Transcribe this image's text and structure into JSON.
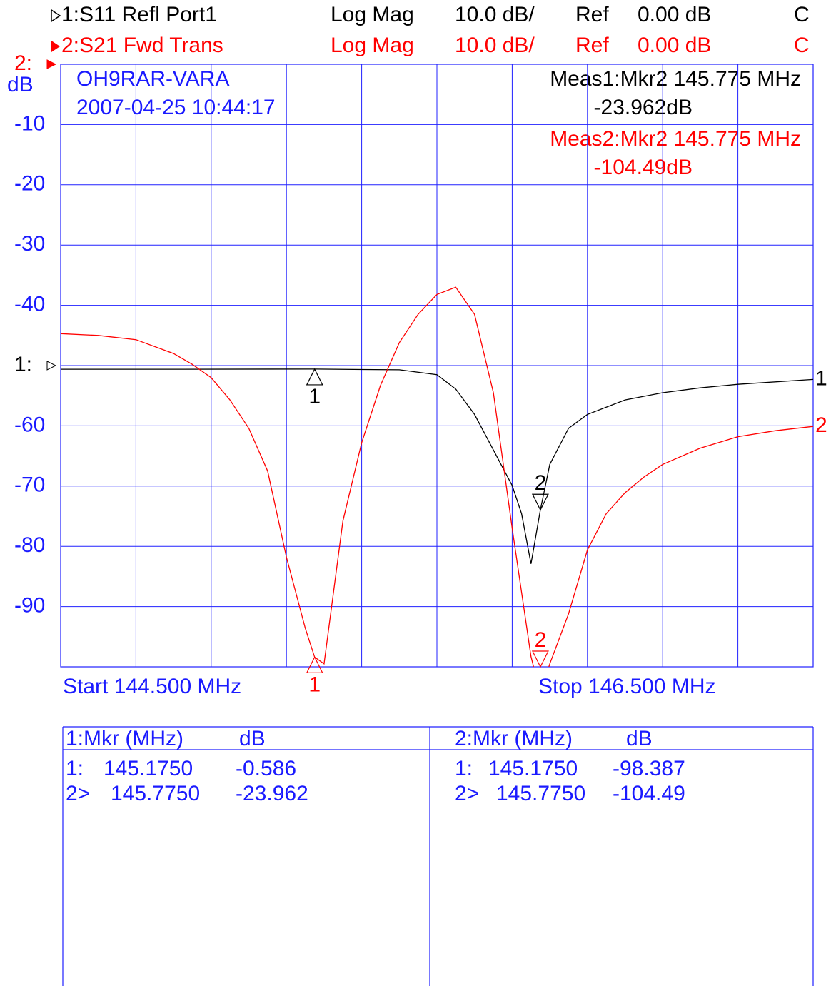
{
  "header": [
    {
      "trace": "1:S11 Refl Port1",
      "format": "Log Mag",
      "scale": "10.0 dB/",
      "ref_label": "Ref",
      "ref_value": "0.00 dB",
      "channel": "C",
      "color": "#000000"
    },
    {
      "trace": "2:S21 Fwd Trans",
      "format": "Log Mag",
      "scale": "10.0 dB/",
      "ref_label": "Ref",
      "ref_value": "0.00 dB",
      "channel": "C",
      "color": "#ff0000"
    }
  ],
  "chart_data": {
    "type": "line",
    "y_label": "dB",
    "annotations": [
      "OH9RAR-VARA",
      "2007-04-25 10:44:17"
    ],
    "measurements": [
      {
        "line1": "Meas1:Mkr2  145.775 MHz",
        "line2": "-23.962dB",
        "color": "#000000"
      },
      {
        "line1": "Meas2:Mkr2  145.775 MHz",
        "line2": "-104.49dB",
        "color": "#ff0000"
      }
    ],
    "start_label": "Start 144.500 MHz",
    "stop_label": "Stop 146.500 MHz",
    "xlim": [
      144.5,
      146.5
    ],
    "x_divisions": 10,
    "ylim": [
      -100,
      0
    ],
    "yticks": [
      -10,
      -20,
      -30,
      -40,
      -50,
      -60,
      -70,
      -80,
      -90
    ],
    "ytick_labels_hidden_at": [
      -50
    ],
    "y2lim": [
      -50,
      50
    ],
    "grid": true,
    "series": [
      {
        "label": "1",
        "ref_label": "1:",
        "axis": "y2",
        "color": "#000000",
        "x": [
          144.5,
          144.8,
          145.175,
          145.4,
          145.5,
          145.55,
          145.6,
          145.65,
          145.7,
          145.725,
          145.75,
          145.775,
          145.8,
          145.85,
          145.9,
          146.0,
          146.1,
          146.2,
          146.3,
          146.5
        ],
        "values": [
          -0.6,
          -0.6,
          -0.586,
          -0.7,
          -1.5,
          -3.9,
          -8.1,
          -14,
          -19.9,
          -24.6,
          -32.9,
          -23.962,
          -16.4,
          -10.4,
          -8.1,
          -5.7,
          -4.5,
          -3.7,
          -3.1,
          -2.3
        ],
        "markers": [
          {
            "label": "1",
            "x": 145.175,
            "value": -0.586,
            "style": "up"
          },
          {
            "label": "2",
            "x": 145.775,
            "value": -23.962,
            "style": "down"
          }
        ]
      },
      {
        "label": "2",
        "ref_label": "2:",
        "axis": "y",
        "color": "#ff0000",
        "x": [
          144.5,
          144.6,
          144.7,
          144.8,
          144.85,
          144.9,
          144.95,
          145.0,
          145.05,
          145.1,
          145.15,
          145.175,
          145.2,
          145.25,
          145.3,
          145.35,
          145.4,
          145.45,
          145.5,
          145.55,
          145.6,
          145.65,
          145.7,
          145.75,
          145.775,
          145.8,
          145.85,
          145.9,
          145.95,
          146.0,
          146.05,
          146.1,
          146.2,
          146.3,
          146.4,
          146.5
        ],
        "values": [
          -44.7,
          -45.0,
          -45.7,
          -48,
          -49.8,
          -52,
          -55.7,
          -60.4,
          -67.5,
          -81.8,
          -93.6,
          -98.387,
          -99.5,
          -75.8,
          -62.8,
          -53.3,
          -46.2,
          -41.5,
          -38.2,
          -37.0,
          -41.5,
          -54.5,
          -77,
          -98.3,
          -104.49,
          -99.5,
          -91.2,
          -80.6,
          -74.6,
          -71.1,
          -68.5,
          -66.4,
          -63.7,
          -61.8,
          -60.8,
          -60.1
        ],
        "markers": [
          {
            "label": "1",
            "x": 145.175,
            "value": -98.387,
            "style": "up"
          },
          {
            "label": "2",
            "x": 145.775,
            "value": -104.49,
            "style": "down"
          }
        ]
      }
    ]
  },
  "marker_table": [
    {
      "header": [
        "1:Mkr (MHz)",
        "dB"
      ],
      "rows": [
        [
          "1:",
          "145.1750",
          "-0.586"
        ],
        [
          "2>",
          "145.7750",
          "-23.962"
        ]
      ]
    },
    {
      "header": [
        "2:Mkr (MHz)",
        "dB"
      ],
      "rows": [
        [
          "1:",
          "145.1750",
          "-98.387"
        ],
        [
          "2>",
          "145.7750",
          "-104.49"
        ]
      ]
    }
  ]
}
